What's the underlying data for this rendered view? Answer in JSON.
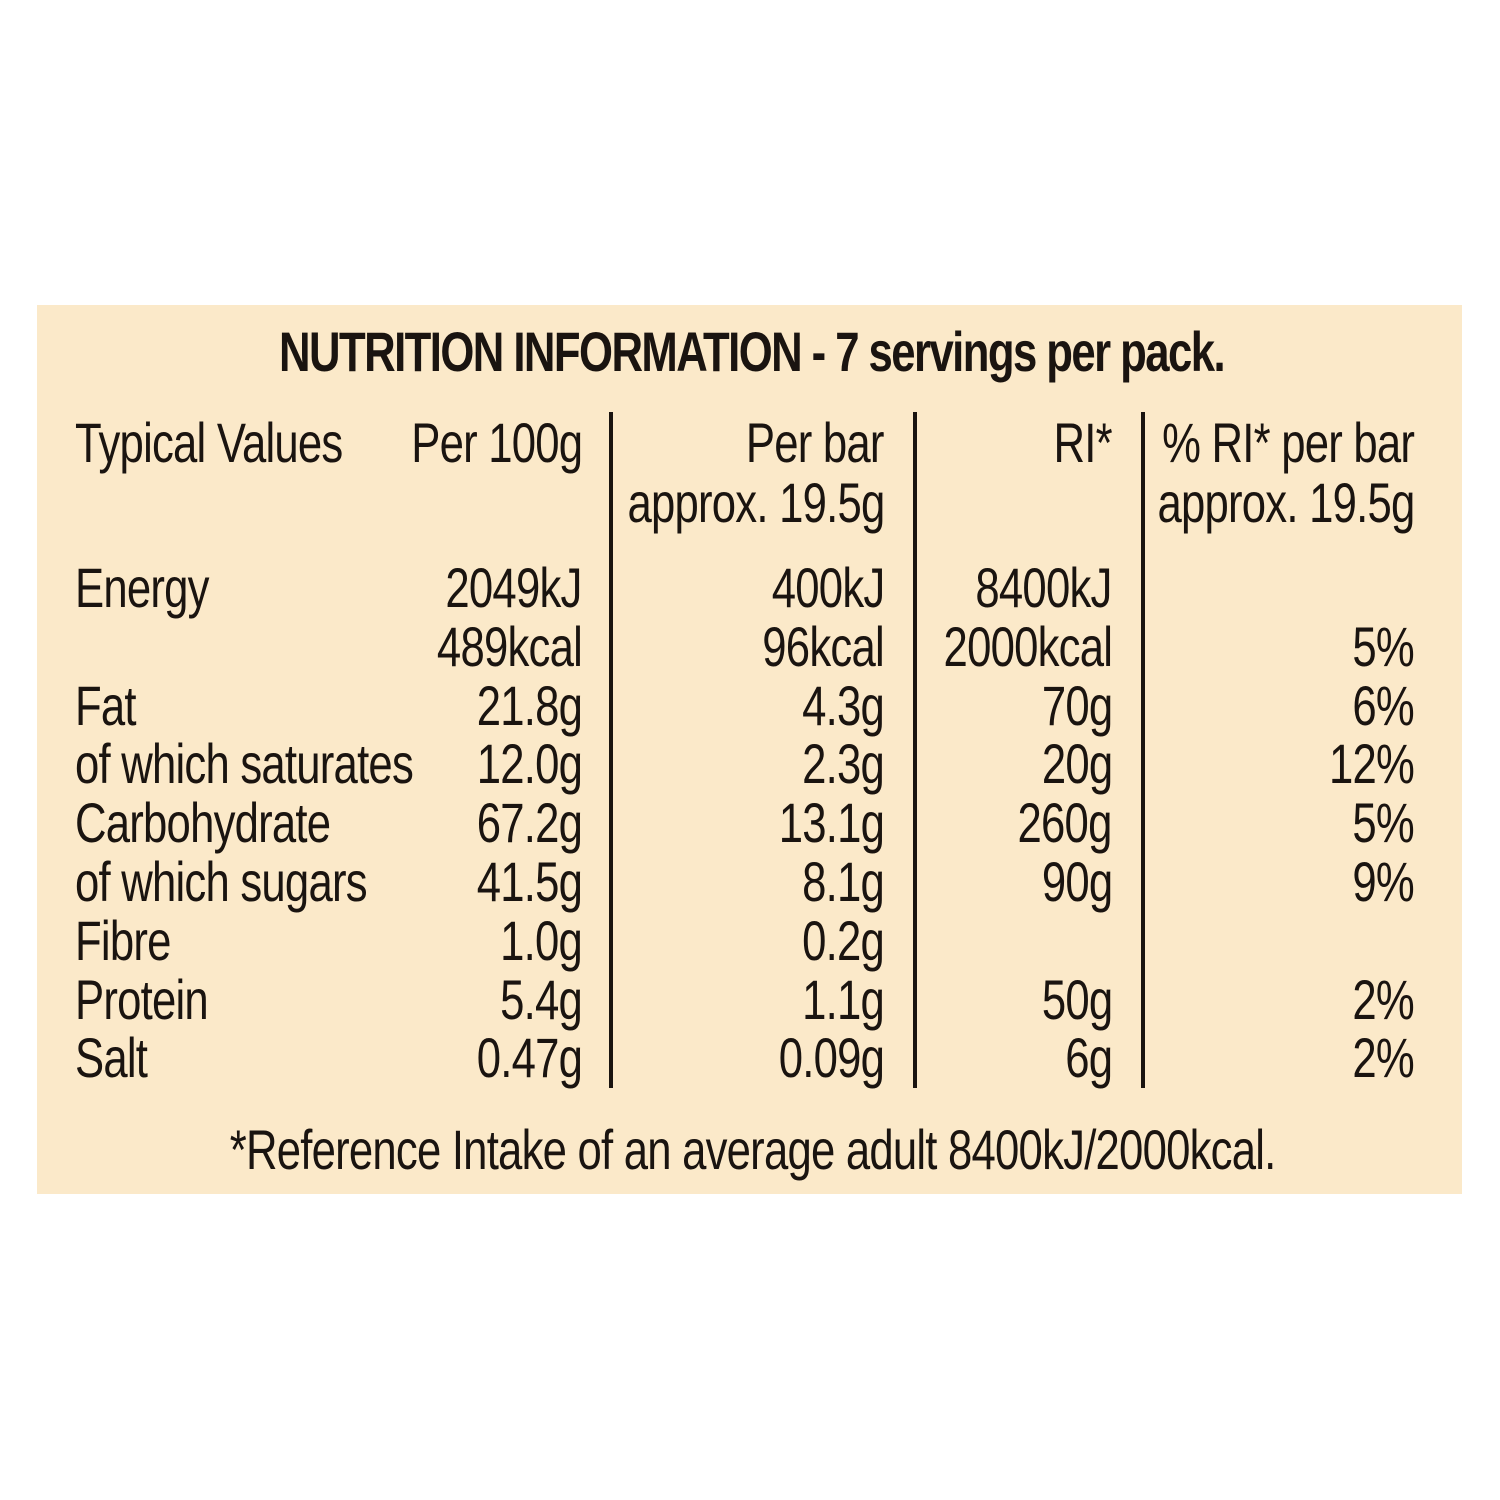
{
  "title": "NUTRITION INFORMATION - 7 servings per pack.",
  "headers": {
    "label": "Typical Values",
    "per100_line1": "Per 100g",
    "perbar_line1": "Per  bar",
    "perbar_line2": "approx. 19.5g",
    "ri": "RI*",
    "pct_line1": "% RI* per bar",
    "pct_line2": "approx. 19.5g"
  },
  "rows": [
    {
      "label": "Energy",
      "per100": "2049kJ",
      "perbar": "400kJ",
      "ri": "8400kJ",
      "pct": ""
    },
    {
      "label": "",
      "per100": "489kcal",
      "perbar": "96kcal",
      "ri": "2000kcal",
      "pct": "5%"
    },
    {
      "label": "Fat",
      "per100": "21.8g",
      "perbar": "4.3g",
      "ri": "70g",
      "pct": "6%"
    },
    {
      "label": "of which saturates",
      "per100": "12.0g",
      "perbar": "2.3g",
      "ri": "20g",
      "pct": "12%"
    },
    {
      "label": "Carbohydrate",
      "per100": "67.2g",
      "perbar": "13.1g",
      "ri": "260g",
      "pct": "5%"
    },
    {
      "label": "of which sugars",
      "per100": "41.5g",
      "perbar": "8.1g",
      "ri": "90g",
      "pct": "9%"
    },
    {
      "label": "Fibre",
      "per100": "1.0g",
      "perbar": "0.2g",
      "ri": "",
      "pct": ""
    },
    {
      "label": "Protein",
      "per100": "5.4g",
      "perbar": "1.1g",
      "ri": "50g",
      "pct": "2%"
    },
    {
      "label": "Salt",
      "per100": "0.47g",
      "perbar": "0.09g",
      "ri": "6g",
      "pct": "2%"
    }
  ],
  "footnote": "*Reference Intake of an average adult 8400kJ/2000kcal."
}
